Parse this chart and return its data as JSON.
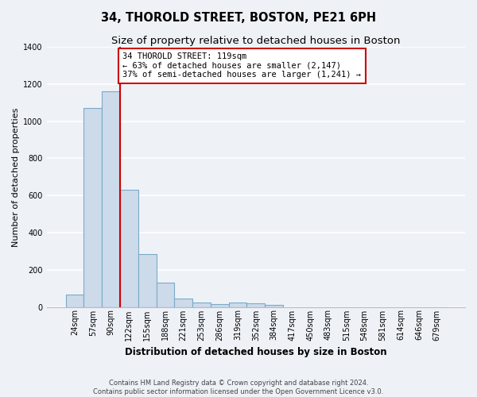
{
  "title": "34, THOROLD STREET, BOSTON, PE21 6PH",
  "subtitle": "Size of property relative to detached houses in Boston",
  "xlabel": "Distribution of detached houses by size in Boston",
  "ylabel": "Number of detached properties",
  "categories": [
    "24sqm",
    "57sqm",
    "90sqm",
    "122sqm",
    "155sqm",
    "188sqm",
    "221sqm",
    "253sqm",
    "286sqm",
    "319sqm",
    "352sqm",
    "384sqm",
    "417sqm",
    "450sqm",
    "483sqm",
    "515sqm",
    "548sqm",
    "581sqm",
    "614sqm",
    "646sqm",
    "679sqm"
  ],
  "bar_values": [
    65,
    1070,
    1160,
    630,
    285,
    130,
    45,
    25,
    15,
    25,
    20,
    10,
    0,
    0,
    0,
    0,
    0,
    0,
    0,
    0,
    0
  ],
  "bar_color": "#cddaea",
  "bar_edge_color": "#7aaac8",
  "bar_edge_width": 0.8,
  "ylim": [
    0,
    1400
  ],
  "yticks": [
    0,
    200,
    400,
    600,
    800,
    1000,
    1200,
    1400
  ],
  "red_line_color": "#cc0000",
  "annotation_title": "34 THOROLD STREET: 119sqm",
  "annotation_line1": "← 63% of detached houses are smaller (2,147)",
  "annotation_line2": "37% of semi-detached houses are larger (1,241) →",
  "annotation_box_color": "#ffffff",
  "annotation_box_edge_color": "#cc0000",
  "footer_line1": "Contains HM Land Registry data © Crown copyright and database right 2024.",
  "footer_line2": "Contains public sector information licensed under the Open Government Licence v3.0.",
  "background_color": "#eef2f7",
  "grid_color": "#ffffff",
  "title_fontsize": 10.5,
  "subtitle_fontsize": 9.5,
  "axis_label_fontsize": 8.5,
  "tick_fontsize": 7,
  "footer_fontsize": 6,
  "ylabel_fontsize": 8
}
